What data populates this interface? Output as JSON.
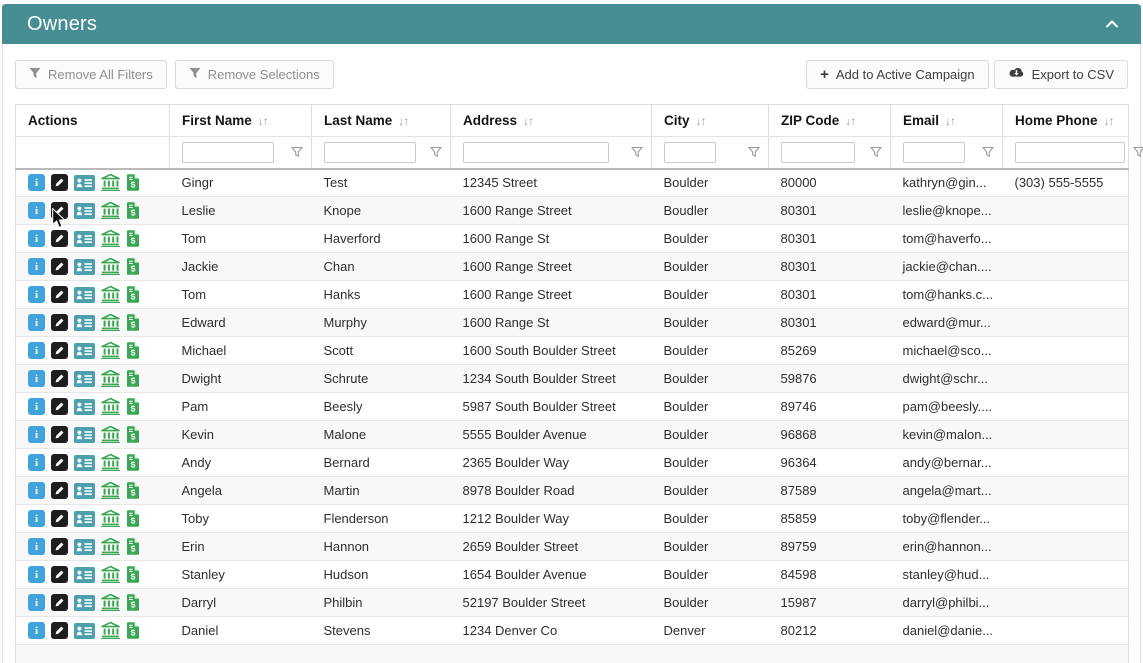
{
  "panel": {
    "title": "Owners",
    "collapse_icon": "chevron-up-icon"
  },
  "toolbar": {
    "remove_all_filters": "Remove All Filters",
    "remove_selections": "Remove Selections",
    "add_to_campaign": "Add to Active Campaign",
    "export_csv": "Export to CSV"
  },
  "table": {
    "columns": [
      {
        "label": "Actions",
        "sortable": false
      },
      {
        "label": "First Name",
        "sortable": true
      },
      {
        "label": "Last Name",
        "sortable": true
      },
      {
        "label": "Address",
        "sortable": true
      },
      {
        "label": "City",
        "sortable": true
      },
      {
        "label": "ZIP Code",
        "sortable": true
      },
      {
        "label": "Email",
        "sortable": true
      },
      {
        "label": "Home Phone",
        "sortable": true
      }
    ],
    "sort_glyph": "↓↑",
    "actions": [
      "info-icon",
      "edit-pencil-icon",
      "contact-card-icon",
      "bank-icon",
      "money-file-icon"
    ],
    "rows": [
      {
        "first": "Gingr",
        "last": "Test",
        "address": "12345 Street",
        "city": "Boulder",
        "zip": "80000",
        "email": "kathryn@gin...",
        "phone": "(303) 555-5555"
      },
      {
        "first": "Leslie",
        "last": "Knope",
        "address": "1600 Range Street",
        "city": "Boudler",
        "zip": "80301",
        "email": "leslie@knope...",
        "phone": ""
      },
      {
        "first": "Tom",
        "last": "Haverford",
        "address": "1600 Range St",
        "city": "Boulder",
        "zip": "80301",
        "email": "tom@haverfo...",
        "phone": ""
      },
      {
        "first": "Jackie",
        "last": "Chan",
        "address": "1600 Range Street",
        "city": "Boulder",
        "zip": "80301",
        "email": "jackie@chan....",
        "phone": ""
      },
      {
        "first": "Tom",
        "last": "Hanks",
        "address": "1600 Range Street",
        "city": "Boulder",
        "zip": "80301",
        "email": "tom@hanks.c...",
        "phone": ""
      },
      {
        "first": "Edward",
        "last": "Murphy",
        "address": "1600 Range St",
        "city": "Boulder",
        "zip": "80301",
        "email": "edward@mur...",
        "phone": ""
      },
      {
        "first": "Michael",
        "last": "Scott",
        "address": "1600 South Boulder Street",
        "city": "Boulder",
        "zip": "85269",
        "email": "michael@sco...",
        "phone": ""
      },
      {
        "first": "Dwight",
        "last": "Schrute",
        "address": "1234 South Boulder Street",
        "city": "Boulder",
        "zip": "59876",
        "email": "dwight@schr...",
        "phone": ""
      },
      {
        "first": "Pam",
        "last": "Beesly",
        "address": "5987 South Boulder Street",
        "city": "Boulder",
        "zip": "89746",
        "email": "pam@beesly....",
        "phone": ""
      },
      {
        "first": "Kevin",
        "last": "Malone",
        "address": "5555 Boulder Avenue",
        "city": "Boulder",
        "zip": "96868",
        "email": "kevin@malon...",
        "phone": ""
      },
      {
        "first": "Andy",
        "last": "Bernard",
        "address": "2365 Boulder Way",
        "city": "Boulder",
        "zip": "96364",
        "email": "andy@bernar...",
        "phone": ""
      },
      {
        "first": "Angela",
        "last": "Martin",
        "address": "8978 Boulder Road",
        "city": "Boulder",
        "zip": "87589",
        "email": "angela@mart...",
        "phone": ""
      },
      {
        "first": "Toby",
        "last": "Flenderson",
        "address": "1212 Boulder Way",
        "city": "Boulder",
        "zip": "85859",
        "email": "toby@flender...",
        "phone": ""
      },
      {
        "first": "Erin",
        "last": "Hannon",
        "address": "2659 Boulder Street",
        "city": "Boulder",
        "zip": "89759",
        "email": "erin@hannon...",
        "phone": ""
      },
      {
        "first": "Stanley",
        "last": "Hudson",
        "address": "1654 Boulder Avenue",
        "city": "Boulder",
        "zip": "84598",
        "email": "stanley@hud...",
        "phone": ""
      },
      {
        "first": "Darryl",
        "last": "Philbin",
        "address": "52197 Boulder Street",
        "city": "Boulder",
        "zip": "15987",
        "email": "darryl@philbi...",
        "phone": ""
      },
      {
        "first": "Daniel",
        "last": "Stevens",
        "address": "1234 Denver Co",
        "city": "Denver",
        "zip": "80212",
        "email": "daniel@danie...",
        "phone": ""
      }
    ]
  },
  "colors": {
    "title_bar_teal": "#478e92",
    "icon_info_blue": "#41a3dc",
    "icon_edit_black": "#1e1e1e",
    "icon_card_teal": "#4d9fae",
    "icon_green": "#3aa553",
    "alt_row": "#f8f8f8"
  }
}
